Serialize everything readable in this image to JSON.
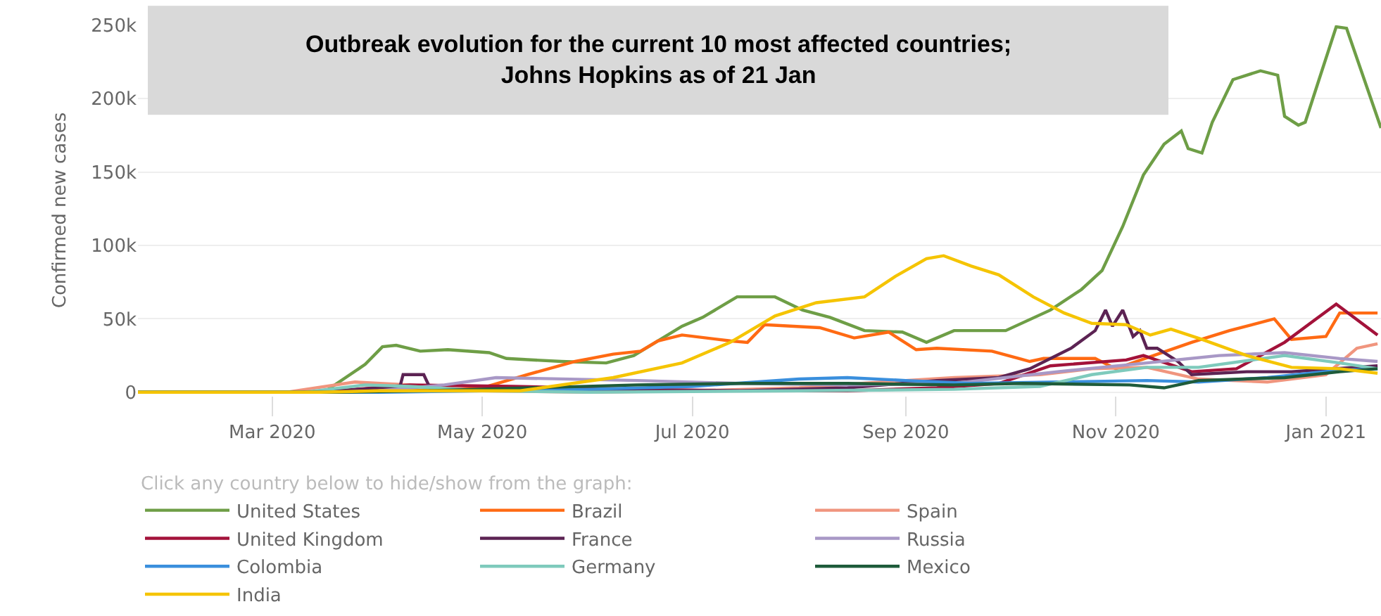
{
  "chart_data": {
    "type": "line",
    "title": "Outbreak evolution for the current 10 most affected countries;\nJohns Hopkins as of 21 Jan",
    "ylabel": "Confirmed new cases",
    "legend_title": "Click any country below to hide/show from the graph:",
    "legend": "bottom",
    "grid": "y",
    "marker": "none",
    "line_style": "solid",
    "xlim": [
      "2020-01-22",
      "2021-01-17"
    ],
    "xticks": [
      {
        "value": "2020-03-01",
        "label": "Mar 2020"
      },
      {
        "value": "2020-05-01",
        "label": "May 2020"
      },
      {
        "value": "2020-07-01",
        "label": "Jul 2020"
      },
      {
        "value": "2020-09-01",
        "label": "Sep 2020"
      },
      {
        "value": "2020-11-01",
        "label": "Nov 2020"
      },
      {
        "value": "2021-01-01",
        "label": "Jan 2021"
      }
    ],
    "ylim": [
      -2000,
      250000
    ],
    "yticks": [
      {
        "value": 0,
        "label": "0"
      },
      {
        "value": 50000,
        "label": "50k"
      },
      {
        "value": 100000,
        "label": "100k"
      },
      {
        "value": 150000,
        "label": "150k"
      },
      {
        "value": 200000,
        "label": "200k"
      },
      {
        "value": 250000,
        "label": "250k"
      }
    ],
    "series": [
      {
        "name": "United States",
        "color": "#6e9e46",
        "x": [
          "2020-01-22",
          "2020-03-16",
          "2020-03-28",
          "2020-04-02",
          "2020-04-06",
          "2020-04-13",
          "2020-04-21",
          "2020-05-03",
          "2020-05-08",
          "2020-05-24",
          "2020-06-06",
          "2020-06-14",
          "2020-06-28",
          "2020-07-04",
          "2020-07-14",
          "2020-07-25",
          "2020-08-02",
          "2020-08-10",
          "2020-08-20",
          "2020-08-31",
          "2020-09-07",
          "2020-09-15",
          "2020-09-30",
          "2020-10-13",
          "2020-10-22",
          "2020-10-28",
          "2020-11-03",
          "2020-11-09",
          "2020-11-15",
          "2020-11-20",
          "2020-11-22",
          "2020-11-26",
          "2020-11-29",
          "2020-12-05",
          "2020-12-13",
          "2020-12-18",
          "2020-12-20",
          "2020-12-24",
          "2020-12-26",
          "2020-12-30",
          "2021-01-04",
          "2021-01-07",
          "2021-01-17"
        ],
        "values": [
          0,
          0,
          19000,
          31000,
          32000,
          28000,
          29000,
          27000,
          23000,
          21000,
          20000,
          25000,
          45000,
          51000,
          65000,
          65000,
          56000,
          51000,
          42000,
          41000,
          34000,
          42000,
          42000,
          56000,
          70000,
          83000,
          113000,
          148000,
          169000,
          178000,
          166000,
          163000,
          184000,
          213000,
          219000,
          216000,
          188000,
          182000,
          184000,
          213000,
          249000,
          248000,
          180000
        ]
      },
      {
        "name": "Brazil",
        "color": "#ff6a13",
        "x": [
          "2020-01-22",
          "2020-03-15",
          "2020-04-10",
          "2020-05-01",
          "2020-05-14",
          "2020-05-28",
          "2020-06-08",
          "2020-06-16",
          "2020-06-21",
          "2020-06-28",
          "2020-07-12",
          "2020-07-17",
          "2020-07-22",
          "2020-08-07",
          "2020-08-17",
          "2020-08-27",
          "2020-09-04",
          "2020-09-10",
          "2020-09-26",
          "2020-10-07",
          "2020-10-11",
          "2020-10-26",
          "2020-11-01",
          "2020-11-07",
          "2020-11-23",
          "2020-12-04",
          "2020-12-17",
          "2020-12-22",
          "2021-01-01",
          "2021-01-05",
          "2021-01-16"
        ],
        "values": [
          0,
          0,
          1000,
          3000,
          12000,
          21000,
          26000,
          28000,
          35000,
          39000,
          35000,
          34000,
          46000,
          44000,
          37000,
          41000,
          29000,
          30000,
          28000,
          21000,
          23000,
          23000,
          16000,
          21000,
          34000,
          42000,
          50000,
          36000,
          38000,
          54000,
          54000
        ]
      },
      {
        "name": "Spain",
        "color": "#f0957e",
        "x": [
          "2020-01-22",
          "2020-03-05",
          "2020-03-25",
          "2020-04-10",
          "2020-05-01",
          "2020-06-01",
          "2020-07-01",
          "2020-08-01",
          "2020-08-25",
          "2020-09-15",
          "2020-10-10",
          "2020-10-25",
          "2020-11-10",
          "2020-11-25",
          "2020-12-15",
          "2021-01-01",
          "2021-01-10",
          "2021-01-16"
        ],
        "values": [
          0,
          0,
          7000,
          5000,
          1000,
          0,
          1000,
          3000,
          7000,
          10000,
          12000,
          16000,
          17000,
          9000,
          7000,
          12000,
          30000,
          33000
        ]
      },
      {
        "name": "United Kingdom",
        "color": "#a3123a",
        "x": [
          "2020-01-22",
          "2020-03-15",
          "2020-04-10",
          "2020-05-10",
          "2020-06-15",
          "2020-07-15",
          "2020-08-15",
          "2020-09-10",
          "2020-09-28",
          "2020-10-13",
          "2020-11-04",
          "2020-11-09",
          "2020-11-23",
          "2020-12-06",
          "2020-12-20",
          "2020-12-28",
          "2021-01-04",
          "2021-01-16"
        ],
        "values": [
          0,
          0,
          5000,
          4000,
          2000,
          1000,
          1000,
          3000,
          6000,
          18000,
          22000,
          25000,
          14000,
          16000,
          34000,
          48000,
          60000,
          39000
        ]
      },
      {
        "name": "France",
        "color": "#5c2353",
        "x": [
          "2020-01-22",
          "2020-03-15",
          "2020-04-01",
          "2020-04-07",
          "2020-04-08",
          "2020-04-14",
          "2020-04-16",
          "2020-05-15",
          "2020-07-15",
          "2020-08-15",
          "2020-09-10",
          "2020-09-28",
          "2020-10-07",
          "2020-10-19",
          "2020-10-26",
          "2020-10-29",
          "2020-10-31",
          "2020-11-03",
          "2020-11-06",
          "2020-11-08",
          "2020-11-10",
          "2020-11-13",
          "2020-11-19",
          "2020-11-23",
          "2020-12-09",
          "2020-12-22",
          "2021-01-16"
        ],
        "values": [
          0,
          0,
          3000,
          3000,
          12000,
          12000,
          2000,
          1000,
          1000,
          3000,
          8000,
          10000,
          16000,
          30000,
          42000,
          56000,
          45000,
          56000,
          38000,
          42000,
          30000,
          30000,
          21000,
          12000,
          14000,
          14000,
          18000
        ]
      },
      {
        "name": "Russia",
        "color": "#a898c6",
        "x": [
          "2020-01-22",
          "2020-03-20",
          "2020-04-01",
          "2020-04-20",
          "2020-05-05",
          "2020-06-15",
          "2020-07-15",
          "2020-08-15",
          "2020-09-15",
          "2020-10-15",
          "2020-11-10",
          "2020-12-01",
          "2020-12-20",
          "2021-01-05",
          "2021-01-16"
        ],
        "values": [
          0,
          0,
          1000,
          5000,
          10000,
          8000,
          6000,
          5000,
          6000,
          14000,
          20000,
          25000,
          27000,
          23000,
          21000
        ]
      },
      {
        "name": "Colombia",
        "color": "#3a8fdd",
        "x": [
          "2020-01-22",
          "2020-04-01",
          "2020-06-01",
          "2020-07-01",
          "2020-08-01",
          "2020-08-15",
          "2020-09-01",
          "2020-09-20",
          "2020-10-15",
          "2020-11-10",
          "2020-11-25",
          "2020-12-15",
          "2021-01-05",
          "2021-01-16"
        ],
        "values": [
          0,
          0,
          2000,
          4000,
          9000,
          10000,
          8000,
          6000,
          7000,
          8000,
          7000,
          10000,
          15000,
          16000
        ]
      },
      {
        "name": "Germany",
        "color": "#7ecabc",
        "x": [
          "2020-01-22",
          "2020-03-10",
          "2020-03-28",
          "2020-04-10",
          "2020-05-01",
          "2020-06-01",
          "2020-08-01",
          "2020-09-15",
          "2020-10-10",
          "2020-10-25",
          "2020-11-10",
          "2020-11-25",
          "2020-12-20",
          "2021-01-05",
          "2021-01-16"
        ],
        "values": [
          0,
          0,
          5000,
          4000,
          1000,
          0,
          1000,
          2000,
          4000,
          12000,
          17000,
          17000,
          25000,
          20000,
          16000
        ]
      },
      {
        "name": "Mexico",
        "color": "#1e5b3a",
        "x": [
          "2020-01-22",
          "2020-03-20",
          "2020-04-15",
          "2020-05-15",
          "2020-06-15",
          "2020-07-15",
          "2020-08-15",
          "2020-09-15",
          "2020-10-05",
          "2020-11-05",
          "2020-11-15",
          "2020-11-25",
          "2020-12-20",
          "2021-01-05",
          "2021-01-16"
        ],
        "values": [
          0,
          0,
          1000,
          3000,
          5000,
          6000,
          6000,
          5000,
          6000,
          5000,
          3000,
          8000,
          10000,
          14000,
          16000
        ]
      },
      {
        "name": "India",
        "color": "#f5c400",
        "x": [
          "2020-01-22",
          "2020-03-15",
          "2020-04-01",
          "2020-05-12",
          "2020-06-08",
          "2020-06-28",
          "2020-07-12",
          "2020-07-25",
          "2020-08-06",
          "2020-08-20",
          "2020-08-29",
          "2020-09-07",
          "2020-09-12",
          "2020-09-20",
          "2020-09-28",
          "2020-10-08",
          "2020-10-17",
          "2020-10-25",
          "2020-11-04",
          "2020-11-11",
          "2020-11-17",
          "2020-11-26",
          "2020-12-09",
          "2020-12-22",
          "2021-01-05",
          "2021-01-16"
        ],
        "values": [
          0,
          0,
          1000,
          1000,
          10000,
          20000,
          34000,
          52000,
          61000,
          65000,
          79000,
          91000,
          93000,
          86000,
          80000,
          65000,
          54000,
          47000,
          46000,
          39000,
          43000,
          36000,
          25000,
          17000,
          16000,
          13000
        ]
      }
    ]
  }
}
